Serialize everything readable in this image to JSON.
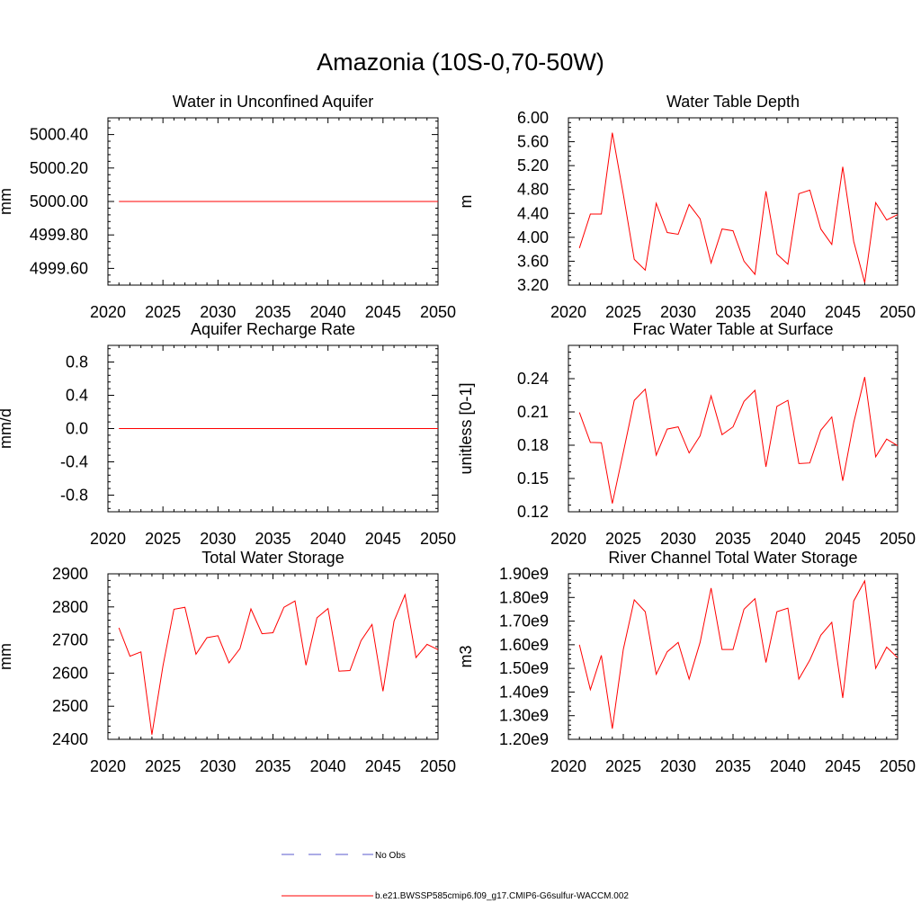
{
  "page_title": "Amazonia (10S-0,70-50W)",
  "legend": [
    {
      "label": "No Obs",
      "color": "#5a5acd",
      "style": "dashed"
    },
    {
      "label": "b.e21.BWSSP585cmip6.f09_g17.CMIP6-G6sulfur-WACCM.002",
      "color": "#ff0000",
      "style": "solid"
    }
  ],
  "chart_data": [
    {
      "type": "line",
      "title": "Water in Unconfined Aquifer",
      "ylabel": "mm",
      "xlim": [
        2020,
        2050
      ],
      "ylim": [
        4999.5,
        5000.5
      ],
      "x_ticks": [
        2020,
        2025,
        2030,
        2035,
        2040,
        2045,
        2050
      ],
      "y_ticks": [
        {
          "value": 4999.6,
          "label": "4999.60"
        },
        {
          "value": 4999.8,
          "label": "4999.80"
        },
        {
          "value": 5000.0,
          "label": "5000.00"
        },
        {
          "value": 5000.2,
          "label": "5000.20"
        },
        {
          "value": 5000.4,
          "label": "5000.40"
        }
      ],
      "x": [
        2021,
        2022,
        2023,
        2024,
        2025,
        2026,
        2027,
        2028,
        2029,
        2030,
        2031,
        2032,
        2033,
        2034,
        2035,
        2036,
        2037,
        2038,
        2039,
        2040,
        2041,
        2042,
        2043,
        2044,
        2045,
        2046,
        2047,
        2048,
        2049,
        2050
      ],
      "series": [
        {
          "color": "#ff0000",
          "values": [
            5000,
            5000,
            5000,
            5000,
            5000,
            5000,
            5000,
            5000,
            5000,
            5000,
            5000,
            5000,
            5000,
            5000,
            5000,
            5000,
            5000,
            5000,
            5000,
            5000,
            5000,
            5000,
            5000,
            5000,
            5000,
            5000,
            5000,
            5000,
            5000,
            5000
          ]
        }
      ]
    },
    {
      "type": "line",
      "title": "Water Table Depth",
      "ylabel": "m",
      "xlim": [
        2020,
        2050
      ],
      "ylim": [
        3.2,
        6.0
      ],
      "x_ticks": [
        2020,
        2025,
        2030,
        2035,
        2040,
        2045,
        2050
      ],
      "y_ticks": [
        {
          "value": 3.2,
          "label": "3.20"
        },
        {
          "value": 3.6,
          "label": "3.60"
        },
        {
          "value": 4.0,
          "label": "4.00"
        },
        {
          "value": 4.4,
          "label": "4.40"
        },
        {
          "value": 4.8,
          "label": "4.80"
        },
        {
          "value": 5.2,
          "label": "5.20"
        },
        {
          "value": 5.6,
          "label": "5.60"
        },
        {
          "value": 6.0,
          "label": "6.00"
        }
      ],
      "x": [
        2021,
        2022,
        2023,
        2024,
        2025,
        2026,
        2027,
        2028,
        2029,
        2030,
        2031,
        2032,
        2033,
        2034,
        2035,
        2036,
        2037,
        2038,
        2039,
        2040,
        2041,
        2042,
        2043,
        2044,
        2045,
        2046,
        2047,
        2048,
        2049,
        2050
      ],
      "series": [
        {
          "color": "#ff0000",
          "values": [
            3.82,
            4.39,
            4.39,
            5.75,
            4.72,
            3.63,
            3.45,
            4.57,
            4.08,
            4.05,
            4.55,
            4.31,
            3.57,
            4.14,
            4.11,
            3.6,
            3.38,
            4.77,
            3.72,
            3.55,
            4.73,
            4.79,
            4.14,
            3.88,
            5.18,
            3.93,
            3.24,
            4.58,
            4.29,
            4.38
          ]
        }
      ]
    },
    {
      "type": "line",
      "title": "Aquifer Recharge Rate",
      "ylabel": "mm/d",
      "xlim": [
        2020,
        2050
      ],
      "ylim": [
        -1.0,
        1.0
      ],
      "x_ticks": [
        2020,
        2025,
        2030,
        2035,
        2040,
        2045,
        2050
      ],
      "y_ticks": [
        {
          "value": -0.8,
          "label": "-0.8"
        },
        {
          "value": -0.4,
          "label": "-0.4"
        },
        {
          "value": 0.0,
          "label": "0.0"
        },
        {
          "value": 0.4,
          "label": "0.4"
        },
        {
          "value": 0.8,
          "label": "0.8"
        }
      ],
      "x": [
        2021,
        2022,
        2023,
        2024,
        2025,
        2026,
        2027,
        2028,
        2029,
        2030,
        2031,
        2032,
        2033,
        2034,
        2035,
        2036,
        2037,
        2038,
        2039,
        2040,
        2041,
        2042,
        2043,
        2044,
        2045,
        2046,
        2047,
        2048,
        2049,
        2050
      ],
      "series": [
        {
          "color": "#ff0000",
          "values": [
            0,
            0,
            0,
            0,
            0,
            0,
            0,
            0,
            0,
            0,
            0,
            0,
            0,
            0,
            0,
            0,
            0,
            0,
            0,
            0,
            0,
            0,
            0,
            0,
            0,
            0,
            0,
            0,
            0,
            0
          ]
        }
      ]
    },
    {
      "type": "line",
      "title": "Frac Water Table at Surface",
      "ylabel": "unitless [0-1]",
      "xlim": [
        2020,
        2050
      ],
      "ylim": [
        0.12,
        0.27
      ],
      "x_ticks": [
        2020,
        2025,
        2030,
        2035,
        2040,
        2045,
        2050
      ],
      "y_ticks": [
        {
          "value": 0.12,
          "label": "0.12"
        },
        {
          "value": 0.15,
          "label": "0.15"
        },
        {
          "value": 0.18,
          "label": "0.18"
        },
        {
          "value": 0.21,
          "label": "0.21"
        },
        {
          "value": 0.24,
          "label": "0.24"
        }
      ],
      "x": [
        2021,
        2022,
        2023,
        2024,
        2025,
        2026,
        2027,
        2028,
        2029,
        2030,
        2031,
        2032,
        2033,
        2034,
        2035,
        2036,
        2037,
        2038,
        2039,
        2040,
        2041,
        2042,
        2043,
        2044,
        2045,
        2046,
        2047,
        2048,
        2049,
        2050
      ],
      "series": [
        {
          "color": "#ff0000",
          "values": [
            0.2095,
            0.1825,
            0.1823,
            0.1275,
            0.1735,
            0.2205,
            0.2305,
            0.171,
            0.1945,
            0.1965,
            0.173,
            0.1885,
            0.2245,
            0.1895,
            0.1965,
            0.2195,
            0.2295,
            0.1605,
            0.215,
            0.2205,
            0.1635,
            0.164,
            0.1935,
            0.2055,
            0.148,
            0.2005,
            0.2415,
            0.1695,
            0.1855,
            0.1795
          ]
        }
      ]
    },
    {
      "type": "line",
      "title": "Total Water Storage",
      "ylabel": "mm",
      "xlim": [
        2020,
        2050
      ],
      "ylim": [
        2400,
        2900
      ],
      "x_ticks": [
        2020,
        2025,
        2030,
        2035,
        2040,
        2045,
        2050
      ],
      "y_ticks": [
        {
          "value": 2400,
          "label": "2400"
        },
        {
          "value": 2500,
          "label": "2500"
        },
        {
          "value": 2600,
          "label": "2600"
        },
        {
          "value": 2700,
          "label": "2700"
        },
        {
          "value": 2800,
          "label": "2800"
        },
        {
          "value": 2900,
          "label": "2900"
        }
      ],
      "x": [
        2021,
        2022,
        2023,
        2024,
        2025,
        2026,
        2027,
        2028,
        2029,
        2030,
        2031,
        2032,
        2033,
        2034,
        2035,
        2036,
        2037,
        2038,
        2039,
        2040,
        2041,
        2042,
        2043,
        2044,
        2045,
        2046,
        2047,
        2048,
        2049,
        2050
      ],
      "series": [
        {
          "color": "#ff0000",
          "values": [
            2737,
            2651,
            2664,
            2414,
            2622,
            2793,
            2799,
            2657,
            2707,
            2713,
            2631,
            2674,
            2794,
            2719,
            2722,
            2799,
            2818,
            2624,
            2767,
            2795,
            2606,
            2608,
            2698,
            2747,
            2545,
            2757,
            2837,
            2647,
            2687,
            2671
          ]
        }
      ]
    },
    {
      "type": "line",
      "title": "River Channel Total Water Storage",
      "ylabel": "m3",
      "xlim": [
        2020,
        2050
      ],
      "ylim": [
        1200000000.0,
        1900000000.0
      ],
      "x_ticks": [
        2020,
        2025,
        2030,
        2035,
        2040,
        2045,
        2050
      ],
      "y_ticks": [
        {
          "value": 1200000000.0,
          "label": "1.20e9"
        },
        {
          "value": 1300000000.0,
          "label": "1.30e9"
        },
        {
          "value": 1400000000.0,
          "label": "1.40e9"
        },
        {
          "value": 1500000000.0,
          "label": "1.50e9"
        },
        {
          "value": 1600000000.0,
          "label": "1.60e9"
        },
        {
          "value": 1700000000.0,
          "label": "1.70e9"
        },
        {
          "value": 1800000000.0,
          "label": "1.80e9"
        },
        {
          "value": 1900000000.0,
          "label": "1.90e9"
        }
      ],
      "x": [
        2021,
        2022,
        2023,
        2024,
        2025,
        2026,
        2027,
        2028,
        2029,
        2030,
        2031,
        2032,
        2033,
        2034,
        2035,
        2036,
        2037,
        2038,
        2039,
        2040,
        2041,
        2042,
        2043,
        2044,
        2045,
        2046,
        2047,
        2048,
        2049,
        2050
      ],
      "series": [
        {
          "color": "#ff0000",
          "values": [
            1600000000.0,
            1410000000.0,
            1555000000.0,
            1245000000.0,
            1580000000.0,
            1790000000.0,
            1740000000.0,
            1475000000.0,
            1570000000.0,
            1610000000.0,
            1455000000.0,
            1610000000.0,
            1840000000.0,
            1580000000.0,
            1580000000.0,
            1750000000.0,
            1795000000.0,
            1525000000.0,
            1740000000.0,
            1755000000.0,
            1455000000.0,
            1535000000.0,
            1640000000.0,
            1695000000.0,
            1375000000.0,
            1785000000.0,
            1870000000.0,
            1500000000.0,
            1590000000.0,
            1545000000.0
          ]
        }
      ]
    }
  ]
}
